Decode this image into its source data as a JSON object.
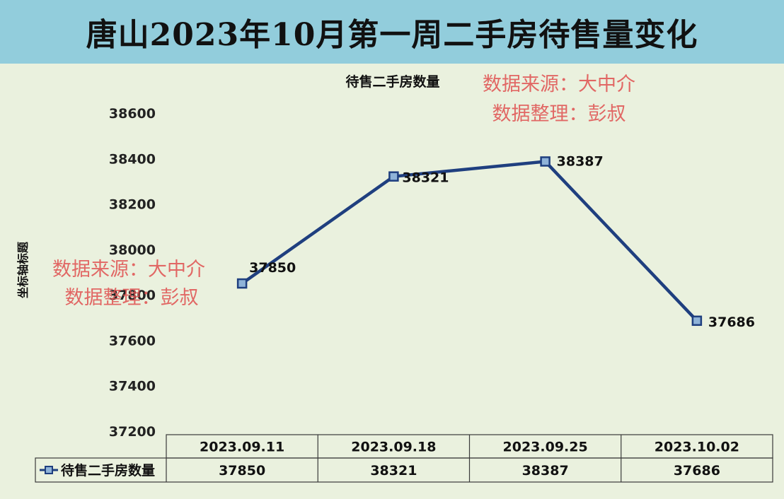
{
  "page": {
    "title": "唐山2023年10月第一周二手房待售量变化",
    "watermark": {
      "line1": "数据来源：大中介",
      "line2": "数据整理：彭叔"
    }
  },
  "colors": {
    "title_bar": "#92cddc",
    "plot_bg": "#eaf1de",
    "series_line": "#1f3f7f",
    "marker_fill": "#8fb3d8",
    "watermark": "#e0504f"
  },
  "chart_data": {
    "type": "line",
    "title": "待售二手房数量",
    "ylabel": "坐标轴标题",
    "xlabel": "",
    "ylim": [
      37200,
      38600
    ],
    "y_ticks": [
      38600,
      38400,
      38200,
      38000,
      37800,
      37600,
      37400,
      37200
    ],
    "grid": false,
    "legend": "data-table",
    "categories": [
      "2023.09.11",
      "2023.09.18",
      "2023.09.25",
      "2023.10.02"
    ],
    "series": [
      {
        "name": "待售二手房数量",
        "values": [
          37850,
          38321,
          38387,
          37686
        ],
        "data_labels": [
          "37850",
          "38321",
          "38387",
          "37686"
        ],
        "table_values": [
          "37850",
          "38321",
          "38387",
          "37686"
        ]
      }
    ]
  }
}
